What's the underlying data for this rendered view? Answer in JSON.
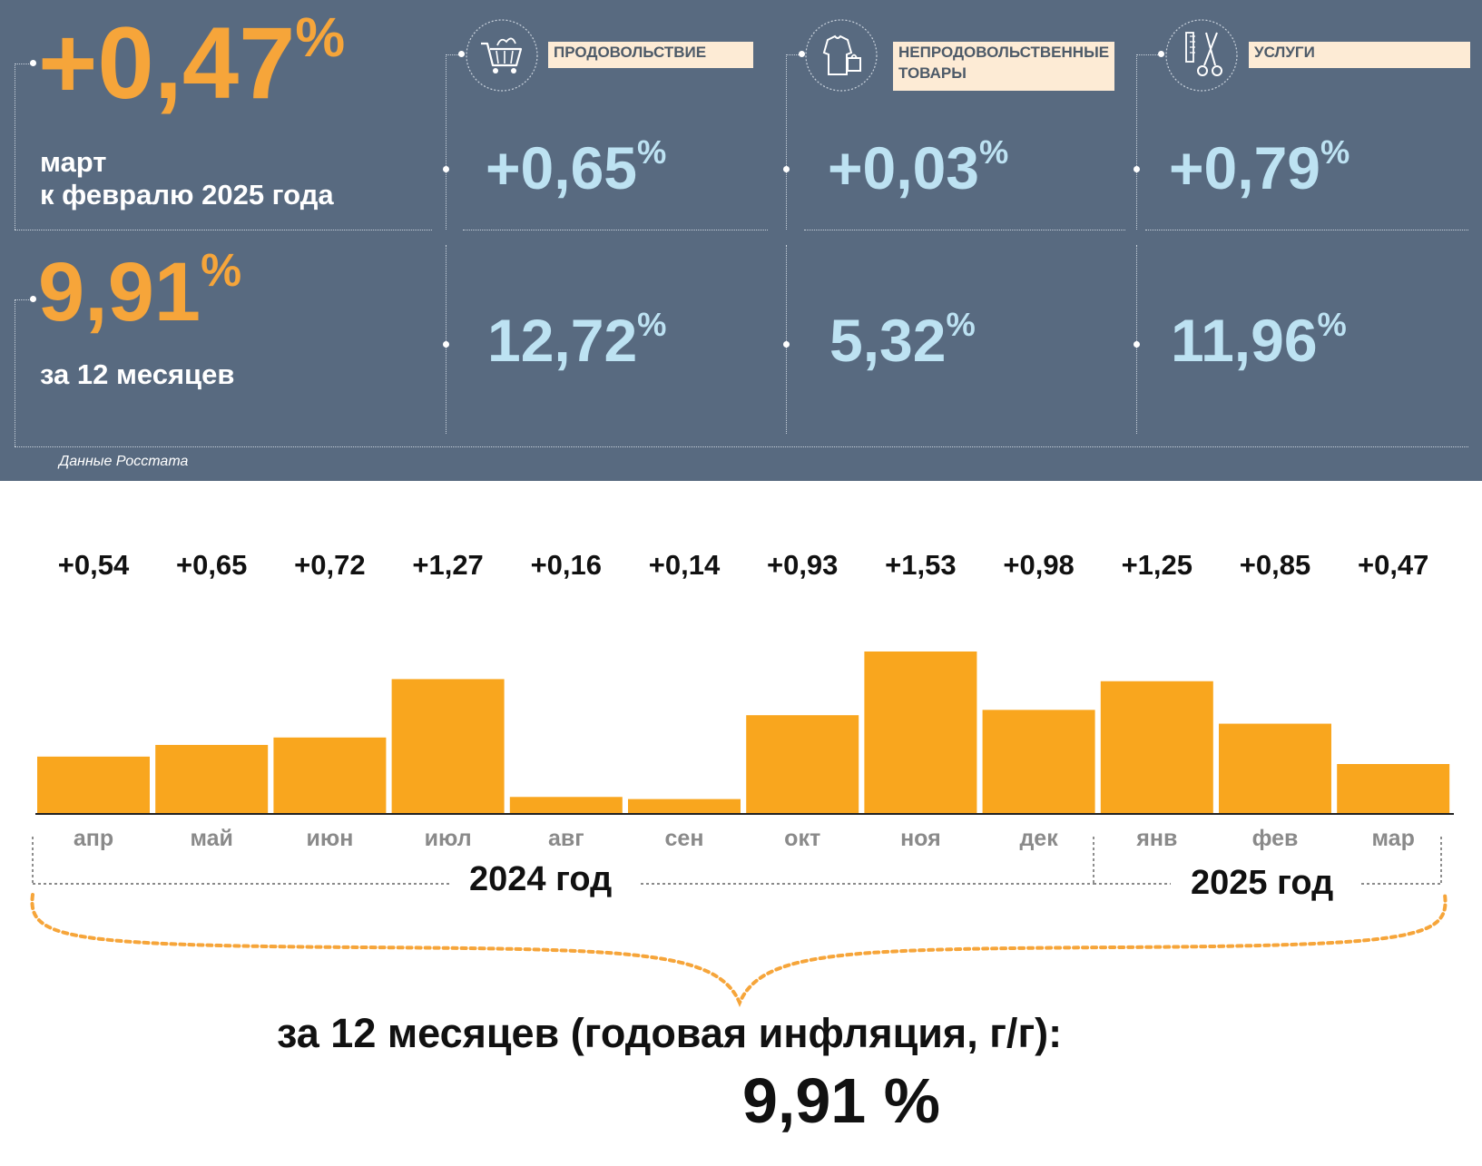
{
  "header": {
    "monthly": {
      "value": "+0,47",
      "unit": "%",
      "line1": "март",
      "line2": "к февралю 2025 года"
    },
    "annual": {
      "value": "9,91",
      "unit": "%",
      "label": "за 12 месяцев"
    },
    "categories": [
      {
        "name_line1": "ПРОДОВОЛЬСТВИЕ",
        "name_line2": "",
        "icon": "shopping-cart-icon",
        "monthly": "+0,65",
        "annual": "12,72",
        "unit": "%"
      },
      {
        "name_line1": "НЕПРОДОВОЛЬСТВЕННЫЕ",
        "name_line2": "ТОВАРЫ",
        "icon": "clothes-bag-icon",
        "monthly": "+0,03",
        "annual": "5,32",
        "unit": "%"
      },
      {
        "name_line1": "УСЛУГИ",
        "name_line2": "",
        "icon": "scissors-comb-icon",
        "monthly": "+0,79",
        "annual": "11,96",
        "unit": "%"
      }
    ],
    "source": "Данные Росстата"
  },
  "colors": {
    "panel": "#586a80",
    "accent_orange": "#f6a53a",
    "light_blue": "#bde2f2",
    "label_bg": "#fdebd5",
    "bar": "#f9a61e"
  },
  "chart_data": {
    "type": "bar",
    "categories": [
      "апр",
      "май",
      "июн",
      "июл",
      "авг",
      "сен",
      "окт",
      "ноя",
      "дек",
      "янв",
      "фев",
      "мар"
    ],
    "values": [
      0.54,
      0.65,
      0.72,
      1.27,
      0.16,
      0.14,
      0.93,
      1.53,
      0.98,
      1.25,
      0.85,
      0.47
    ],
    "value_labels": [
      "+0,54",
      "+0,65",
      "+0,72",
      "+1,27",
      "+0,16",
      "+0,14",
      "+0,93",
      "+1,53",
      "+0,98",
      "+1,25",
      "+0,85",
      "+0,47"
    ],
    "year_groups": [
      {
        "label": "2024 год",
        "from": "апр",
        "to": "дек"
      },
      {
        "label": "2025 год",
        "from": "янв",
        "to": "мар"
      }
    ],
    "ylim": [
      0,
      1.6
    ],
    "grid": false
  },
  "summary": {
    "label": "за 12 месяцев (годовая инфляция, г/г):",
    "value": "9,91 %"
  }
}
